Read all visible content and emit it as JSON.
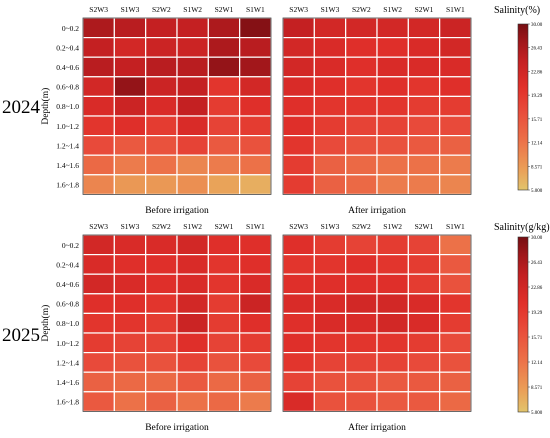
{
  "chart_data": [
    {
      "type": "heatmap",
      "year": "2024",
      "ylabel": "Depth(m)",
      "columns": [
        "S2W3",
        "S1W3",
        "S2W2",
        "S1W2",
        "S2W1",
        "S1W1"
      ],
      "rows": [
        "0~0.2",
        "0.2~0.4",
        "0.4~0.6",
        "0.6~0.8",
        "0.8~1.0",
        "1.0~1.2",
        "1.2~1.4",
        "1.4~1.6",
        "1.6~1.8"
      ],
      "colorbar": {
        "title": "Salinity(%)",
        "range": [
          3.0,
          30.0
        ],
        "ticks": [
          "30.00",
          "26.43",
          "22.86",
          "19.29",
          "15.71",
          "12.14",
          "8.571",
          "5.000"
        ]
      },
      "panels": [
        {
          "label": "Before irrigation",
          "values": [
            [
              26,
              25,
              24,
              24,
              26,
              29
            ],
            [
              24,
              22,
              23,
              23,
              26,
              25
            ],
            [
              25,
              24,
              25,
              25,
              28,
              27
            ],
            [
              22,
              28,
              23,
              24,
              19,
              22
            ],
            [
              21,
              23,
              21,
              24,
              18,
              20
            ],
            [
              19,
              20,
              18,
              21,
              17,
              18
            ],
            [
              16,
              14,
              15,
              17,
              14,
              15
            ],
            [
              12,
              10,
              11,
              9,
              10,
              11
            ],
            [
              9,
              7,
              7,
              8,
              6,
              5
            ]
          ]
        },
        {
          "label": "After irrigation",
          "values": [
            [
              24,
              22,
              22,
              22,
              22,
              23
            ],
            [
              22,
              21,
              20,
              20,
              21,
              22
            ],
            [
              22,
              21,
              20,
              21,
              21,
              21
            ],
            [
              21,
              20,
              19,
              20,
              19,
              20
            ],
            [
              20,
              19,
              19,
              19,
              18,
              18
            ],
            [
              20,
              18,
              17,
              17,
              16,
              16
            ],
            [
              19,
              16,
              15,
              15,
              14,
              13
            ],
            [
              18,
              13,
              12,
              11,
              11,
              10
            ],
            [
              18,
              13,
              12,
              10,
              10,
              9
            ]
          ]
        }
      ]
    },
    {
      "type": "heatmap",
      "year": "2025",
      "ylabel": "Depth(m)",
      "columns": [
        "S2W3",
        "S1W3",
        "S2W2",
        "S1W2",
        "S2W1",
        "S1W1"
      ],
      "rows": [
        "0~0.2",
        "0.2~0.4",
        "0.4~0.6",
        "0.6~0.8",
        "0.8~1.0",
        "1.0~1.2",
        "1.2~1.4",
        "1.4~1.6",
        "1.6~1.8"
      ],
      "colorbar": {
        "title": "Salinity(g/kg)",
        "range": [
          3.0,
          30.0
        ],
        "ticks": [
          "30.00",
          "26.43",
          "22.86",
          "19.29",
          "15.71",
          "12.14",
          "8.571",
          "5.000"
        ]
      },
      "panels": [
        {
          "label": "Before irrigation",
          "values": [
            [
              22,
              21,
              21,
              22,
              20,
              20
            ],
            [
              21,
              20,
              20,
              21,
              19,
              20
            ],
            [
              22,
              21,
              20,
              21,
              19,
              21
            ],
            [
              20,
              20,
              19,
              22,
              18,
              23
            ],
            [
              19,
              19,
              18,
              23,
              18,
              20
            ],
            [
              18,
              17,
              17,
              20,
              17,
              18
            ],
            [
              16,
              15,
              15,
              17,
              15,
              16
            ],
            [
              13,
              12,
              12,
              14,
              12,
              13
            ],
            [
              14,
              11,
              13,
              11,
              12,
              10
            ]
          ]
        },
        {
          "label": "After irrigation",
          "values": [
            [
              20,
              18,
              17,
              18,
              17,
              11
            ],
            [
              19,
              19,
              20,
              19,
              18,
              14
            ],
            [
              20,
              20,
              20,
              20,
              18,
              15
            ],
            [
              21,
              21,
              22,
              22,
              21,
              19
            ],
            [
              20,
              21,
              21,
              22,
              21,
              18
            ],
            [
              20,
              19,
              19,
              19,
              18,
              16
            ],
            [
              19,
              17,
              17,
              17,
              16,
              15
            ],
            [
              17,
              15,
              15,
              14,
              14,
              13
            ],
            [
              21,
              15,
              15,
              14,
              14,
              12
            ]
          ]
        }
      ]
    }
  ]
}
